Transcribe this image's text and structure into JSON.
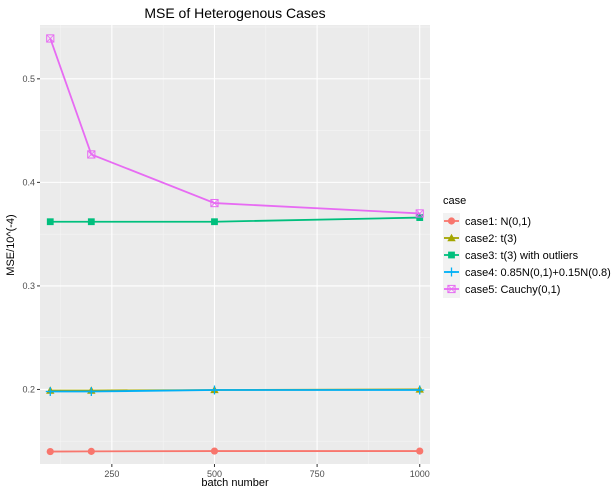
{
  "chart_data": {
    "type": "line",
    "title": "MSE of Heterogenous Cases",
    "xlabel": "batch number",
    "ylabel": "MSE/10^(-4)",
    "x": [
      100,
      200,
      500,
      1000
    ],
    "xlim": [
      75,
      1025
    ],
    "ylim": [
      0.128,
      0.552
    ],
    "x_ticks": [
      250,
      500,
      750,
      1000
    ],
    "x_tick_labels": [
      "250",
      "500",
      "750",
      "1000"
    ],
    "y_ticks": [
      0.2,
      0.3,
      0.4,
      0.5
    ],
    "y_tick_labels": [
      "0.2",
      "0.3",
      "0.4",
      "0.5"
    ],
    "grid": true,
    "legend_title": "case",
    "legend_position": "right",
    "series": [
      {
        "name": "case1: N(0,1)",
        "values": [
          0.14,
          0.1402,
          0.1405,
          0.1405
        ],
        "color": "#F8766D",
        "marker": "circle"
      },
      {
        "name": "case2: t(3)",
        "values": [
          0.199,
          0.199,
          0.1995,
          0.2
        ],
        "color": "#A3A500",
        "marker": "triangle"
      },
      {
        "name": "case3: t(3) with outliers",
        "values": [
          0.362,
          0.362,
          0.362,
          0.366
        ],
        "color": "#00BF7D",
        "marker": "square"
      },
      {
        "name": "case4: 0.85N(0,1)+0.15N(0.8)",
        "values": [
          0.198,
          0.198,
          0.1995,
          0.1995
        ],
        "color": "#00B0F6",
        "marker": "plus"
      },
      {
        "name": "case5: Cauchy(0,1)",
        "values": [
          0.539,
          0.427,
          0.38,
          0.37
        ],
        "color": "#E76BF3",
        "marker": "square-cross"
      }
    ]
  }
}
